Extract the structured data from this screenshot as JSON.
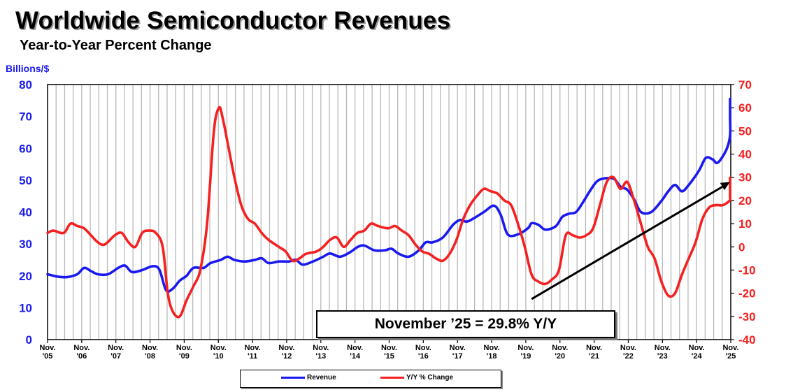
{
  "chart_data": {
    "type": "line",
    "title": "Worldwide Semiconductor Revenues",
    "subtitle": "Year-to-Year Percent Change",
    "ylabel_left": "Billions/$",
    "ylim_left": [
      0,
      80
    ],
    "yticks_left": [
      0,
      10,
      20,
      30,
      40,
      50,
      60,
      70,
      80
    ],
    "ylim_right": [
      -40,
      70
    ],
    "yticks_right": [
      -40,
      -30,
      -20,
      -10,
      0,
      10,
      20,
      30,
      40,
      50,
      60,
      70
    ],
    "x_range": [
      2005.83,
      2025.83
    ],
    "x_ticks": [
      {
        "month": "Nov.",
        "year": "'05"
      },
      {
        "month": "Nov.",
        "year": "'06"
      },
      {
        "month": "Nov.",
        "year": "'07"
      },
      {
        "month": "Nov.",
        "year": "'08"
      },
      {
        "month": "Nov.",
        "year": "'09"
      },
      {
        "month": "Nov.",
        "year": "'10"
      },
      {
        "month": "Nov.",
        "year": "'11"
      },
      {
        "month": "Nov.",
        "year": "'12"
      },
      {
        "month": "Nov.",
        "year": "'13"
      },
      {
        "month": "Nov.",
        "year": "'14"
      },
      {
        "month": "Nov.",
        "year": "'15"
      },
      {
        "month": "Nov.",
        "year": "'16"
      },
      {
        "month": "Nov.",
        "year": "'17"
      },
      {
        "month": "Nov.",
        "year": "'18"
      },
      {
        "month": "Nov.",
        "year": "'19"
      },
      {
        "month": "Nov.",
        "year": "'20"
      },
      {
        "month": "Nov.",
        "year": "'21"
      },
      {
        "month": "Nov.",
        "year": "'22"
      },
      {
        "month": "Nov.",
        "year": "'23"
      },
      {
        "month": "Nov.",
        "year": "'24"
      },
      {
        "month": "Nov.",
        "year": "'25"
      }
    ],
    "series": [
      {
        "name": "Revenue",
        "axis": "left",
        "color": "#1a1af0",
        "points": [
          [
            2005.83,
            20.5
          ],
          [
            2006.1,
            19.8
          ],
          [
            2006.4,
            19.6
          ],
          [
            2006.7,
            20.5
          ],
          [
            2006.9,
            22.5
          ],
          [
            2007.1,
            21.5
          ],
          [
            2007.3,
            20.5
          ],
          [
            2007.6,
            20.5
          ],
          [
            2007.9,
            22.5
          ],
          [
            2008.1,
            23.2
          ],
          [
            2008.3,
            21.2
          ],
          [
            2008.6,
            21.8
          ],
          [
            2008.9,
            23.0
          ],
          [
            2009.1,
            22.0
          ],
          [
            2009.3,
            15.5
          ],
          [
            2009.5,
            16.0
          ],
          [
            2009.7,
            18.5
          ],
          [
            2009.9,
            20.0
          ],
          [
            2010.1,
            22.5
          ],
          [
            2010.4,
            22.5
          ],
          [
            2010.6,
            24.0
          ],
          [
            2010.9,
            25.0
          ],
          [
            2011.1,
            26.0
          ],
          [
            2011.3,
            25.0
          ],
          [
            2011.6,
            24.5
          ],
          [
            2011.9,
            25.0
          ],
          [
            2012.1,
            25.5
          ],
          [
            2012.3,
            24.0
          ],
          [
            2012.6,
            24.5
          ],
          [
            2012.9,
            24.5
          ],
          [
            2013.1,
            25.0
          ],
          [
            2013.3,
            23.5
          ],
          [
            2013.6,
            24.5
          ],
          [
            2013.9,
            26.0
          ],
          [
            2014.1,
            27.0
          ],
          [
            2014.4,
            26.0
          ],
          [
            2014.7,
            27.5
          ],
          [
            2014.9,
            29.0
          ],
          [
            2015.1,
            29.5
          ],
          [
            2015.4,
            28.0
          ],
          [
            2015.7,
            28.0
          ],
          [
            2015.9,
            28.5
          ],
          [
            2016.1,
            27.0
          ],
          [
            2016.4,
            26.0
          ],
          [
            2016.7,
            28.0
          ],
          [
            2016.9,
            30.5
          ],
          [
            2017.1,
            30.5
          ],
          [
            2017.4,
            32.0
          ],
          [
            2017.7,
            36.0
          ],
          [
            2017.9,
            37.5
          ],
          [
            2018.1,
            37.0
          ],
          [
            2018.3,
            38.0
          ],
          [
            2018.6,
            40.0
          ],
          [
            2018.9,
            42.0
          ],
          [
            2019.1,
            39.0
          ],
          [
            2019.3,
            33.0
          ],
          [
            2019.6,
            33.0
          ],
          [
            2019.9,
            35.0
          ],
          [
            2020.0,
            36.5
          ],
          [
            2020.2,
            36.0
          ],
          [
            2020.4,
            34.5
          ],
          [
            2020.7,
            35.5
          ],
          [
            2020.9,
            38.5
          ],
          [
            2021.1,
            39.5
          ],
          [
            2021.3,
            40.0
          ],
          [
            2021.5,
            43.0
          ],
          [
            2021.7,
            46.5
          ],
          [
            2021.9,
            49.5
          ],
          [
            2022.1,
            50.5
          ],
          [
            2022.4,
            50.5
          ],
          [
            2022.6,
            48.0
          ],
          [
            2022.8,
            47.0
          ],
          [
            2023.0,
            44.0
          ],
          [
            2023.2,
            40.0
          ],
          [
            2023.5,
            40.0
          ],
          [
            2023.8,
            43.5
          ],
          [
            2024.0,
            46.5
          ],
          [
            2024.2,
            48.5
          ],
          [
            2024.4,
            46.5
          ],
          [
            2024.6,
            48.5
          ],
          [
            2024.9,
            53.0
          ],
          [
            2025.1,
            57.0
          ],
          [
            2025.3,
            56.5
          ],
          [
            2025.45,
            55.5
          ],
          [
            2025.7,
            59.5
          ],
          [
            2025.9,
            64.0
          ],
          [
            2026.05,
            70.0
          ],
          [
            2026.2,
            75.5
          ]
        ]
      },
      {
        "name": "Y/Y % Change",
        "axis": "right",
        "color": "#f52020",
        "points": [
          [
            2005.83,
            6
          ],
          [
            2006.0,
            7
          ],
          [
            2006.3,
            6
          ],
          [
            2006.5,
            10
          ],
          [
            2006.7,
            9
          ],
          [
            2006.9,
            8
          ],
          [
            2007.1,
            5
          ],
          [
            2007.3,
            2
          ],
          [
            2007.5,
            1
          ],
          [
            2007.8,
            5
          ],
          [
            2008.0,
            6
          ],
          [
            2008.2,
            2
          ],
          [
            2008.4,
            0
          ],
          [
            2008.6,
            6
          ],
          [
            2008.8,
            7
          ],
          [
            2009.0,
            6
          ],
          [
            2009.2,
            0
          ],
          [
            2009.35,
            -20
          ],
          [
            2009.5,
            -28
          ],
          [
            2009.7,
            -30
          ],
          [
            2009.9,
            -23
          ],
          [
            2010.1,
            -17
          ],
          [
            2010.3,
            -10
          ],
          [
            2010.5,
            10
          ],
          [
            2010.7,
            50
          ],
          [
            2010.85,
            60
          ],
          [
            2010.95,
            56
          ],
          [
            2011.1,
            45
          ],
          [
            2011.3,
            30
          ],
          [
            2011.5,
            18
          ],
          [
            2011.7,
            12
          ],
          [
            2011.9,
            10
          ],
          [
            2012.1,
            6
          ],
          [
            2012.3,
            3
          ],
          [
            2012.6,
            0
          ],
          [
            2012.8,
            -2
          ],
          [
            2013.0,
            -6
          ],
          [
            2013.2,
            -5
          ],
          [
            2013.4,
            -3
          ],
          [
            2013.7,
            -2
          ],
          [
            2013.9,
            0
          ],
          [
            2014.1,
            3
          ],
          [
            2014.3,
            4
          ],
          [
            2014.5,
            0
          ],
          [
            2014.7,
            3
          ],
          [
            2014.9,
            6
          ],
          [
            2015.1,
            7
          ],
          [
            2015.3,
            10
          ],
          [
            2015.5,
            9
          ],
          [
            2015.8,
            8
          ],
          [
            2016.0,
            9
          ],
          [
            2016.2,
            7
          ],
          [
            2016.4,
            5
          ],
          [
            2016.6,
            1
          ],
          [
            2016.8,
            -2
          ],
          [
            2017.0,
            -3
          ],
          [
            2017.2,
            -5
          ],
          [
            2017.4,
            -6
          ],
          [
            2017.6,
            -3
          ],
          [
            2017.8,
            3
          ],
          [
            2018.0,
            12
          ],
          [
            2018.2,
            18
          ],
          [
            2018.4,
            22
          ],
          [
            2018.6,
            25
          ],
          [
            2018.8,
            24
          ],
          [
            2019.0,
            23
          ],
          [
            2019.2,
            20
          ],
          [
            2019.4,
            18
          ],
          [
            2019.6,
            10
          ],
          [
            2019.8,
            0
          ],
          [
            2020.0,
            -12
          ],
          [
            2020.2,
            -15
          ],
          [
            2020.4,
            -16
          ],
          [
            2020.6,
            -14
          ],
          [
            2020.8,
            -10
          ],
          [
            2021.0,
            5
          ],
          [
            2021.2,
            5
          ],
          [
            2021.4,
            4
          ],
          [
            2021.6,
            5
          ],
          [
            2021.8,
            8
          ],
          [
            2022.0,
            18
          ],
          [
            2022.2,
            28
          ],
          [
            2022.4,
            30
          ],
          [
            2022.6,
            25
          ],
          [
            2022.8,
            28
          ],
          [
            2023.0,
            20
          ],
          [
            2023.2,
            10
          ],
          [
            2023.4,
            0
          ],
          [
            2023.6,
            -5
          ],
          [
            2023.8,
            -15
          ],
          [
            2024.0,
            -21
          ],
          [
            2024.2,
            -20
          ],
          [
            2024.4,
            -12
          ],
          [
            2024.6,
            -5
          ],
          [
            2024.8,
            2
          ],
          [
            2025.0,
            12
          ],
          [
            2025.2,
            17
          ],
          [
            2025.4,
            18
          ],
          [
            2025.6,
            18
          ],
          [
            2025.8,
            20
          ],
          [
            2026.0,
            22
          ],
          [
            2026.2,
            29.8
          ]
        ]
      },
      {
        "name": "trend",
        "axis": "right",
        "color": "#000000",
        "points": [
          [
            2020.0,
            -22.5
          ],
          [
            2026.05,
            28
          ]
        ]
      }
    ],
    "annotation": "November ’25 = 29.8% Y/Y",
    "legend": [
      {
        "label": "Revenue",
        "color": "#1a1af0"
      },
      {
        "label": "Y/Y % Change",
        "color": "#f52020"
      }
    ],
    "legend_placement": "bottom-center"
  }
}
